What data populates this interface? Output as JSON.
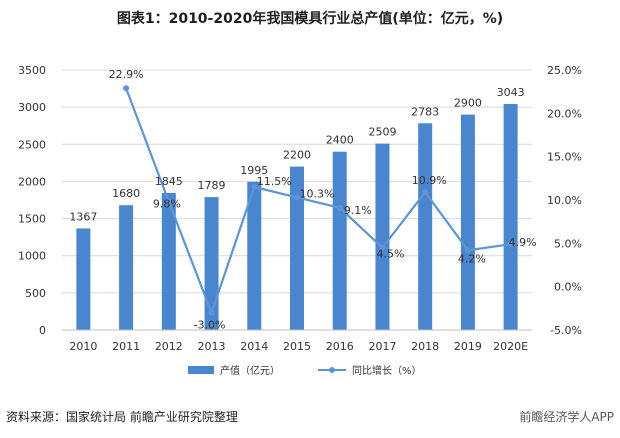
{
  "title": "图表1：2010-2020年我国模具行业总产值(单位：亿元，%)",
  "source": "资料来源：国家统计局 前瞻产业研究院整理",
  "watermark": "前瞻经济学人APP",
  "colors": {
    "bar": "#4a86d0",
    "line": "#5b95d6",
    "grid": "#d9d9d9",
    "text": "#333333"
  },
  "chart_data": {
    "type": "bar",
    "categories": [
      "2010",
      "2011",
      "2012",
      "2013",
      "2014",
      "2015",
      "2016",
      "2017",
      "2018",
      "2019",
      "2020E"
    ],
    "series": [
      {
        "name": "产值（亿元）",
        "type": "bar",
        "axis": "left",
        "values": [
          1367,
          1680,
          1845,
          1789,
          1995,
          2200,
          2400,
          2509,
          2783,
          2900,
          3043
        ],
        "labels": [
          "1367",
          "1680",
          "1845",
          "1789",
          "1995",
          "2200",
          "2400",
          "2509",
          "2783",
          "2900",
          "3043"
        ]
      },
      {
        "name": "同比增长（%）",
        "type": "line",
        "axis": "right",
        "values": [
          null,
          22.9,
          9.8,
          -3.0,
          11.5,
          10.3,
          9.1,
          4.5,
          10.9,
          4.2,
          4.9
        ],
        "labels": [
          "",
          "22.9%",
          "9.8%",
          "-3.0%",
          "11.5%",
          "10.3%",
          "9.1%",
          "4.5%",
          "10.9%",
          "4.2%",
          "4.9%"
        ]
      }
    ],
    "ylim_left": [
      0,
      3500
    ],
    "yticks_left": [
      "0",
      "500",
      "1000",
      "1500",
      "2000",
      "2500",
      "3000",
      "3500"
    ],
    "ylim_right": [
      -5,
      25
    ],
    "yticks_right": [
      "-5.0%",
      "0.0%",
      "5.0%",
      "10.0%",
      "15.0%",
      "20.0%",
      "25.0%"
    ],
    "grid": true,
    "legend_position": "bottom"
  }
}
